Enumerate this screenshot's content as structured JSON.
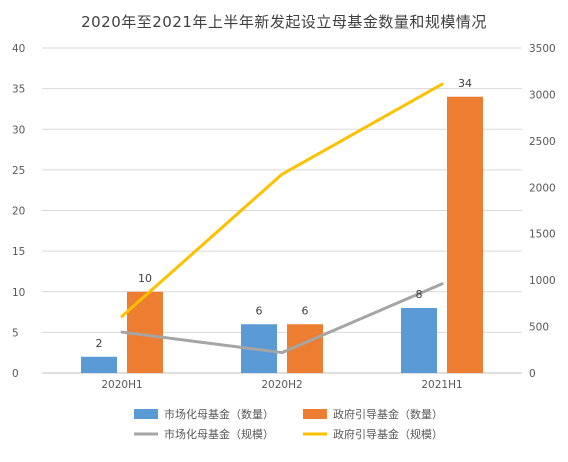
{
  "chart_data": {
    "type": "bar",
    "title": "2020年至2021年上半年新发起设立母基金数量和规模情况",
    "categories": [
      "2020H1",
      "2020H2",
      "2021H1"
    ],
    "y_left": {
      "min": 0,
      "max": 40,
      "step": 5,
      "ticks": [
        "0",
        "5",
        "10",
        "15",
        "20",
        "25",
        "30",
        "35",
        "40"
      ]
    },
    "y_right": {
      "min": 0,
      "max": 3500,
      "step": 500,
      "ticks": [
        "0",
        "500",
        "1000",
        "1500",
        "2000",
        "2500",
        "3000",
        "3500"
      ]
    },
    "grid": true,
    "legend_position": "bottom",
    "bar_series": [
      {
        "name": "市场化母基金（数量）",
        "color": "#5b9bd5",
        "values": [
          2,
          6,
          8
        ],
        "labels": [
          "2",
          "6",
          "8"
        ],
        "axis": "left"
      },
      {
        "name": "政府引导基金（数量）",
        "color": "#ed7d31",
        "values": [
          10,
          6,
          34
        ],
        "labels": [
          "10",
          "6",
          "34"
        ],
        "axis": "left"
      }
    ],
    "line_series": [
      {
        "name": "市场化母基金（规模）",
        "color": "#a5a5a5",
        "values": [
          440,
          220,
          960
        ],
        "axis": "right"
      },
      {
        "name": "政府引导基金（规模）",
        "color": "#ffc000",
        "values": [
          610,
          2140,
          3110
        ],
        "axis": "right"
      }
    ]
  }
}
